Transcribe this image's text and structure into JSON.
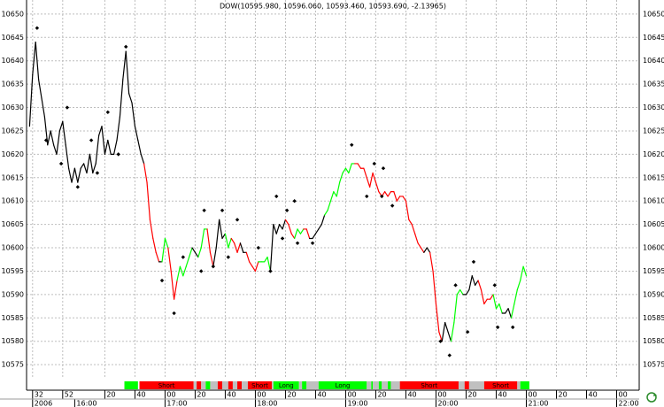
{
  "chart_data": {
    "type": "line",
    "title": "DOW(10595.980, 10596.060, 10593.460, 10593.690, -2.13965)",
    "xlim": [
      928,
      1335
    ],
    "ylim": [
      10572,
      10653
    ],
    "grid": true,
    "yticks": [
      10575,
      10580,
      10585,
      10590,
      10595,
      10600,
      10605,
      10610,
      10615,
      10620,
      10625,
      10630,
      10635,
      10640,
      10645,
      10650
    ],
    "xticks": [
      {
        "value": 932,
        "label": "32"
      },
      {
        "value": 952,
        "label": "52"
      },
      {
        "value": 980,
        "label": "20"
      },
      {
        "value": 1000,
        "label": "40"
      },
      {
        "value": 1020,
        "label": "00"
      },
      {
        "value": 1040,
        "label": "20"
      },
      {
        "value": 1060,
        "label": "40"
      },
      {
        "value": 1080,
        "label": "00"
      },
      {
        "value": 1100,
        "label": "20"
      },
      {
        "value": 1120,
        "label": "40"
      },
      {
        "value": 1140,
        "label": "00"
      },
      {
        "value": 1160,
        "label": "20"
      },
      {
        "value": 1180,
        "label": "40"
      },
      {
        "value": 1200,
        "label": "00"
      },
      {
        "value": 1220,
        "label": "20"
      },
      {
        "value": 1240,
        "label": "40"
      },
      {
        "value": 1260,
        "label": "00"
      },
      {
        "value": 1280,
        "label": "20"
      },
      {
        "value": 1300,
        "label": "40"
      },
      {
        "value": 1320,
        "label": "00"
      }
    ],
    "xticks_major": [
      {
        "value": 932,
        "label": "2006"
      },
      {
        "value": 960,
        "label": "16:00"
      },
      {
        "value": 1020,
        "label": "17:00"
      },
      {
        "value": 1080,
        "label": "18:00"
      },
      {
        "value": 1140,
        "label": "19:00"
      },
      {
        "value": 1200,
        "label": "20:00"
      },
      {
        "value": 1260,
        "label": "21:00"
      },
      {
        "value": 1320,
        "label": "22:00"
      }
    ],
    "series": [
      {
        "type": "line",
        "x": [
          930,
          932,
          934,
          936,
          938,
          940,
          942,
          944,
          946,
          948,
          950,
          952,
          954,
          956,
          958,
          960,
          962,
          964,
          966,
          968,
          970,
          972,
          974,
          976,
          978,
          980,
          982,
          984,
          986,
          988,
          990,
          992,
          994,
          996,
          998,
          1000,
          1002,
          1004,
          1006,
          1008,
          1010,
          1012,
          1014,
          1016,
          1018,
          1020,
          1022,
          1024,
          1026,
          1028,
          1030,
          1032,
          1034,
          1036,
          1038,
          1040,
          1042,
          1044,
          1046,
          1048,
          1050,
          1052,
          1054,
          1056,
          1058,
          1060,
          1062,
          1064,
          1066,
          1068,
          1070,
          1072,
          1074,
          1076,
          1078,
          1080,
          1082,
          1084,
          1086,
          1088,
          1090,
          1092,
          1094,
          1096,
          1098,
          1100,
          1102,
          1104,
          1106,
          1108,
          1110,
          1112,
          1114,
          1116,
          1118,
          1120,
          1122,
          1124,
          1126,
          1128,
          1130,
          1132,
          1134,
          1136,
          1138,
          1140,
          1142,
          1144,
          1146,
          1148,
          1150,
          1152,
          1154,
          1156,
          1158,
          1160,
          1162,
          1164,
          1166,
          1168,
          1170,
          1172,
          1174,
          1176,
          1178,
          1180,
          1182,
          1184,
          1186,
          1188,
          1190,
          1192,
          1194,
          1196,
          1198,
          1200,
          1202,
          1204,
          1206,
          1208,
          1210,
          1212,
          1214,
          1216,
          1218,
          1220,
          1222,
          1224,
          1226,
          1228,
          1230,
          1232,
          1234,
          1236,
          1238,
          1240,
          1242,
          1244,
          1246,
          1248,
          1250,
          1252,
          1254,
          1256,
          1258,
          1260
        ],
        "values": [
          10626,
          10637,
          10644,
          10636,
          10632,
          10628,
          10622,
          10625,
          10622,
          10620,
          10625,
          10627,
          10622,
          10617,
          10614,
          10617,
          10614,
          10617,
          10618,
          10616,
          10620,
          10616,
          10618,
          10624,
          10626,
          10620,
          10623,
          10620,
          10620,
          10623,
          10628,
          10636,
          10642,
          10633,
          10631,
          10626,
          10623,
          10620,
          10618,
          10614,
          10606,
          10602,
          10599,
          10597,
          10597,
          10602,
          10600,
          10595,
          10589,
          10593,
          10596,
          10594,
          10596,
          10598,
          10600,
          10599,
          10598,
          10600,
          10604,
          10604,
          10599,
          10596,
          10600,
          10606,
          10602,
          10603,
          10600,
          10602,
          10601,
          10599,
          10601,
          10599,
          10599,
          10597,
          10596,
          10595,
          10597,
          10597,
          10597,
          10598,
          10595,
          10605,
          10603,
          10605,
          10604,
          10606,
          10605,
          10603,
          10602,
          10604,
          10603,
          10604,
          10604,
          10602,
          10602,
          10603,
          10604,
          10605,
          10607,
          10608,
          10610,
          10612,
          10611,
          10614,
          10616,
          10617,
          10616,
          10618,
          10618,
          10618,
          10617,
          10617,
          10615,
          10613,
          10616,
          10614,
          10612,
          10611,
          10612,
          10611,
          10612,
          10612,
          10610,
          10611,
          10611,
          10610,
          10606,
          10605,
          10603,
          10601,
          10600,
          10599,
          10600,
          10599,
          10595,
          10588,
          10582,
          10580,
          10584,
          10582,
          10580,
          10584,
          10590,
          10591,
          10590,
          10590,
          10591,
          10594,
          10592,
          10593,
          10591,
          10588,
          10589,
          10589,
          10590,
          10587,
          10588,
          10586,
          10586,
          10587,
          10585,
          10588,
          10591,
          10593,
          10596,
          10594
        ],
        "colors": [
          "black",
          "black",
          "black",
          "black",
          "black",
          "black",
          "black",
          "black",
          "black",
          "black",
          "black",
          "black",
          "black",
          "black",
          "black",
          "black",
          "black",
          "black",
          "black",
          "black",
          "black",
          "black",
          "black",
          "black",
          "black",
          "black",
          "black",
          "black",
          "black",
          "black",
          "black",
          "black",
          "black",
          "black",
          "black",
          "black",
          "black",
          "black",
          "black",
          "red",
          "red",
          "red",
          "red",
          "red",
          "black",
          "lime",
          "lime",
          "red",
          "red",
          "red",
          "lime",
          "lime",
          "lime",
          "lime",
          "lime",
          "black",
          "black",
          "lime",
          "lime",
          "lime",
          "red",
          "red",
          "black",
          "black",
          "black",
          "black",
          "lime",
          "lime",
          "red",
          "red",
          "red",
          "black",
          "black",
          "red",
          "red",
          "red",
          "red",
          "lime",
          "lime",
          "lime",
          "lime",
          "black",
          "black",
          "black",
          "black",
          "black",
          "red",
          "red",
          "red",
          "lime",
          "lime",
          "lime",
          "red",
          "red",
          "black",
          "black",
          "black",
          "black",
          "black",
          "lime",
          "lime",
          "lime",
          "lime",
          "lime",
          "lime",
          "lime",
          "lime",
          "lime",
          "lime",
          "red",
          "red",
          "red",
          "red",
          "red",
          "red",
          "red",
          "red",
          "red",
          "red",
          "red",
          "red",
          "red",
          "red",
          "red",
          "red",
          "red",
          "red",
          "red",
          "red",
          "red",
          "red",
          "red",
          "black",
          "black",
          "red",
          "red",
          "red",
          "red",
          "black",
          "black",
          "black",
          "lime",
          "lime",
          "lime",
          "lime",
          "black",
          "black",
          "black",
          "black",
          "black",
          "red",
          "red",
          "red",
          "red",
          "red",
          "lime",
          "lime",
          "lime",
          "black",
          "black",
          "black",
          "lime",
          "lime",
          "lime",
          "lime",
          "lime"
        ]
      },
      {
        "type": "scatter",
        "marker": "diamond",
        "color": "black",
        "x": [
          935,
          941,
          951,
          955,
          962,
          971,
          975,
          982,
          989,
          994,
          1018,
          1026,
          1032,
          1044,
          1046,
          1052,
          1058,
          1062,
          1068,
          1082,
          1090,
          1094,
          1098,
          1101,
          1106,
          1108,
          1118,
          1144,
          1154,
          1159,
          1164,
          1165,
          1171,
          1203,
          1209,
          1213,
          1221,
          1225,
          1239,
          1241,
          1251
        ],
        "values": [
          10647,
          10623,
          10618,
          10630,
          10613,
          10623,
          10616,
          10629,
          10620,
          10643,
          10593,
          10586,
          10598,
          10595,
          10608,
          10596,
          10608,
          10598,
          10606,
          10600,
          10595,
          10611,
          10602,
          10608,
          10610,
          10601,
          10601,
          10622,
          10611,
          10618,
          10611,
          10617,
          10609,
          10580,
          10577,
          10592,
          10582,
          10597,
          10592,
          10583,
          10583
        ]
      }
    ],
    "signals": [
      {
        "start": 993,
        "end": 1002,
        "color": "lime"
      },
      {
        "start": 1003,
        "end": 1039,
        "color": "red",
        "label": "Short"
      },
      {
        "start": 1039,
        "end": 1041,
        "color": "#c0c0c0"
      },
      {
        "start": 1041,
        "end": 1044,
        "color": "red"
      },
      {
        "start": 1044,
        "end": 1047,
        "color": "#c0c0c0"
      },
      {
        "start": 1047,
        "end": 1050,
        "color": "lime"
      },
      {
        "start": 1050,
        "end": 1055,
        "color": "#c0c0c0"
      },
      {
        "start": 1055,
        "end": 1058,
        "color": "red"
      },
      {
        "start": 1058,
        "end": 1062,
        "color": "#c0c0c0"
      },
      {
        "start": 1062,
        "end": 1065,
        "color": "red"
      },
      {
        "start": 1065,
        "end": 1068,
        "color": "#c0c0c0"
      },
      {
        "start": 1068,
        "end": 1071,
        "color": "red"
      },
      {
        "start": 1071,
        "end": 1075,
        "color": "#c0c0c0"
      },
      {
        "start": 1075,
        "end": 1091,
        "color": "red",
        "label": "Short"
      },
      {
        "start": 1091,
        "end": 1092,
        "color": "#c0c0c0"
      },
      {
        "start": 1092,
        "end": 1109,
        "color": "lime",
        "label": "Long"
      },
      {
        "start": 1109,
        "end": 1111,
        "color": "#c0c0c0"
      },
      {
        "start": 1111,
        "end": 1114,
        "color": "lime"
      },
      {
        "start": 1114,
        "end": 1122,
        "color": "#c0c0c0"
      },
      {
        "start": 1122,
        "end": 1154,
        "color": "lime",
        "label": "Long"
      },
      {
        "start": 1154,
        "end": 1157,
        "color": "#c0c0c0"
      },
      {
        "start": 1157,
        "end": 1158,
        "color": "lime"
      },
      {
        "start": 1158,
        "end": 1162,
        "color": "#c0c0c0"
      },
      {
        "start": 1162,
        "end": 1164,
        "color": "lime"
      },
      {
        "start": 1164,
        "end": 1168,
        "color": "#c0c0c0"
      },
      {
        "start": 1168,
        "end": 1170,
        "color": "lime"
      },
      {
        "start": 1170,
        "end": 1176,
        "color": "#c0c0c0"
      },
      {
        "start": 1176,
        "end": 1215,
        "color": "red",
        "label": "Short"
      },
      {
        "start": 1215,
        "end": 1219,
        "color": "#c0c0c0"
      },
      {
        "start": 1219,
        "end": 1222,
        "color": "red"
      },
      {
        "start": 1222,
        "end": 1232,
        "color": "#c0c0c0"
      },
      {
        "start": 1232,
        "end": 1254,
        "color": "red",
        "label": "Short"
      },
      {
        "start": 1254,
        "end": 1256,
        "color": "#c0c0c0"
      },
      {
        "start": 1256,
        "end": 1262,
        "color": "lime"
      }
    ]
  }
}
